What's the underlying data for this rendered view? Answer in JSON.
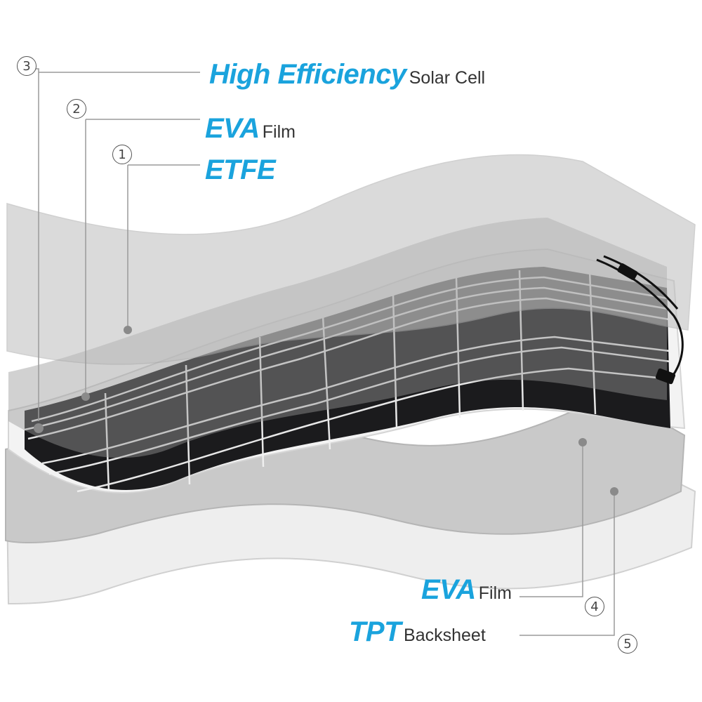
{
  "callouts": {
    "c3": {
      "number": "3",
      "big": "High Efficiency",
      "small": "Solar Cell"
    },
    "c2": {
      "number": "2",
      "big": "EVA",
      "small": "Film"
    },
    "c1": {
      "number": "1",
      "big": "ETFE",
      "small": ""
    },
    "c4": {
      "number": "4",
      "big": "EVA",
      "small": "Film"
    },
    "c5": {
      "number": "5",
      "big": "TPT",
      "small": "Backsheet"
    }
  },
  "colors": {
    "accent": "#1aa3dd",
    "etfe_layer": "#9a9a9a",
    "eva_layer": "#c9c9c9",
    "backsheet": "#e6e6e6",
    "cell_dark": "#1b1b1d",
    "cell_grid": "#f2f2f2"
  }
}
